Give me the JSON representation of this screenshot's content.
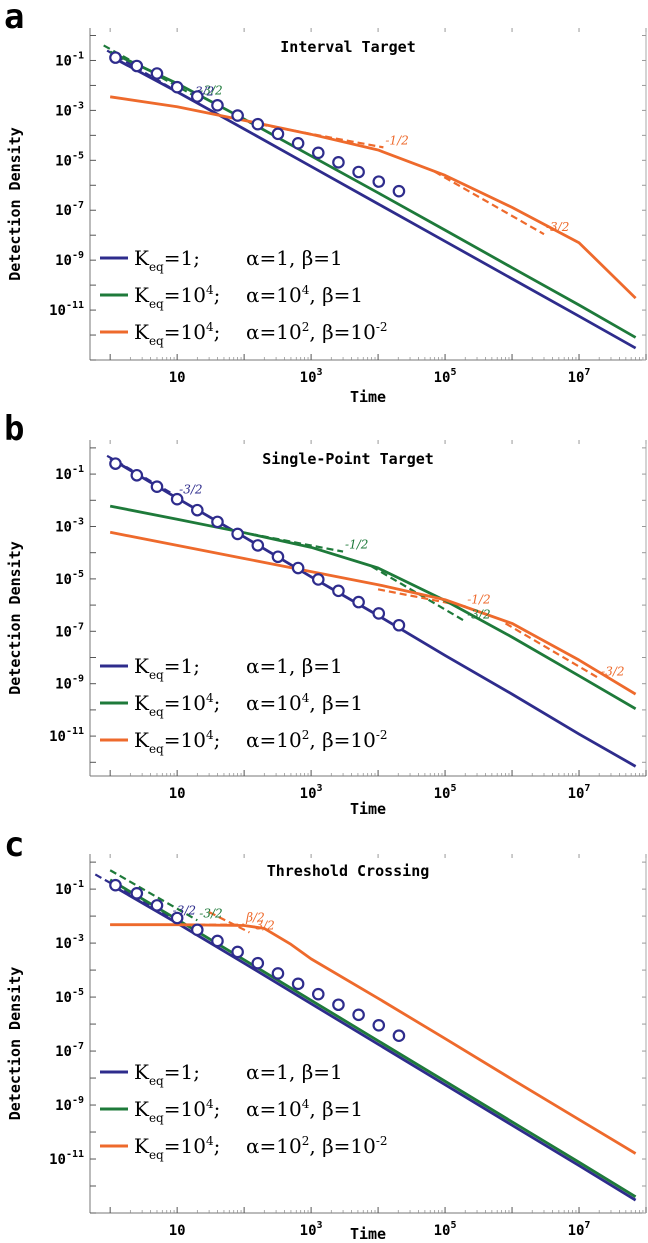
{
  "colors": {
    "blue": "#2e2c8c",
    "green": "#1e7a3a",
    "orange": "#ee6a2c"
  },
  "legend": [
    {
      "name": "K_eq=1; α=1, β=1",
      "k": "1",
      "k_sup": "",
      "alpha": "1",
      "alpha_sup": "",
      "beta": "1",
      "beta_sup": "",
      "color": "blue"
    },
    {
      "name": "K_eq=10^4; α=10^4, β=1",
      "k": "10",
      "k_sup": "4",
      "alpha": "10",
      "alpha_sup": "4",
      "beta": "1",
      "beta_sup": "",
      "color": "green"
    },
    {
      "name": "K_eq=10^4; α=10^2, β=10^-2",
      "k": "10",
      "k_sup": "4",
      "alpha": "10",
      "alpha_sup": "2",
      "beta": "10",
      "beta_sup": "-2",
      "color": "orange"
    }
  ],
  "chart_data": [
    {
      "type": "line",
      "panel": "a",
      "title": "Interval Target",
      "xlabel": "Time",
      "ylabel": "Detection Density",
      "xscale": "log",
      "yscale": "log",
      "xlim": [
        0.5,
        100000000
      ],
      "ylim": [
        1e-13,
        2
      ],
      "xticks": [
        {
          "value": 10,
          "label": "10"
        },
        {
          "value": 1000,
          "label": "10",
          "exp": "3"
        },
        {
          "value": 100000,
          "label": "10",
          "exp": "5"
        },
        {
          "value": 10000000,
          "label": "10",
          "exp": "7"
        }
      ],
      "yticks": [
        {
          "value": 0.1,
          "label": "10",
          "exp": "-1"
        },
        {
          "value": 0.001,
          "label": "10",
          "exp": "-3"
        },
        {
          "value": 1e-05,
          "label": "10",
          "exp": "-5"
        },
        {
          "value": 1e-07,
          "label": "10",
          "exp": "-7"
        },
        {
          "value": 1e-09,
          "label": "10",
          "exp": "-9"
        },
        {
          "value": 1e-11,
          "label": "10",
          "exp": "-11"
        }
      ],
      "legend_position": "bottom-left",
      "series": [
        {
          "color": "blue",
          "x": [
            1,
            10,
            100,
            1000,
            10000,
            100000,
            1000000,
            10000000,
            70000000
          ],
          "y": [
            0.15,
            0.0055,
            0.00018,
            5.7e-06,
            1.8e-07,
            5.7e-09,
            1.8e-10,
            5.7e-12,
            3e-13
          ]
        },
        {
          "color": "green",
          "x": [
            1,
            10,
            100,
            1000,
            10000,
            100000,
            1000000,
            10000000,
            70000000
          ],
          "y": [
            0.22,
            0.012,
            0.00045,
            1.5e-05,
            5e-07,
            1.6e-08,
            5e-10,
            1.6e-11,
            8e-13
          ]
        },
        {
          "color": "orange",
          "x": [
            1,
            10,
            100,
            1000,
            10000,
            100000,
            1000000,
            10000000,
            70000000
          ],
          "y": [
            0.0035,
            0.0014,
            0.0004,
            0.00011,
            2.6e-05,
            2.5e-06,
            1.3e-07,
            5e-09,
            3e-11
          ]
        }
      ],
      "markers": {
        "color": "blue",
        "x": [
          1.2,
          2.5,
          5,
          10,
          20,
          40,
          80,
          160,
          320,
          640,
          1280,
          2560,
          5120,
          10240,
          20480
        ],
        "y": [
          0.13,
          0.06,
          0.03,
          0.0085,
          0.0036,
          0.0016,
          0.00062,
          0.00028,
          0.000115,
          4.8e-05,
          2e-05,
          8.3e-06,
          3.4e-06,
          1.4e-06,
          5.8e-07
        ]
      },
      "guides": [
        {
          "color": "green",
          "x": [
            0.8,
            20
          ],
          "y": [
            0.4,
            0.0033
          ],
          "label": "-3/2"
        },
        {
          "color": "blue",
          "x": [
            0.9,
            15
          ],
          "y": [
            0.25,
            0.003
          ],
          "label": "-3/2"
        },
        {
          "color": "orange",
          "x": [
            120,
            12000
          ],
          "y": [
            0.00033,
            3.3e-05
          ],
          "label": "-1/2"
        },
        {
          "color": "orange",
          "x": [
            70000,
            3000000
          ],
          "y": [
            3.5e-06,
            1.1e-08
          ],
          "label": "-3/2"
        }
      ]
    },
    {
      "type": "line",
      "panel": "b",
      "title": "Single-Point Target",
      "xlabel": "Time",
      "ylabel": "Detection Density",
      "xscale": "log",
      "yscale": "log",
      "xlim": [
        0.5,
        100000000
      ],
      "ylim": [
        3e-13,
        2
      ],
      "xticks": [
        {
          "value": 10,
          "label": "10"
        },
        {
          "value": 1000,
          "label": "10",
          "exp": "3"
        },
        {
          "value": 100000,
          "label": "10",
          "exp": "5"
        },
        {
          "value": 10000000,
          "label": "10",
          "exp": "7"
        }
      ],
      "yticks": [
        {
          "value": 0.1,
          "label": "10",
          "exp": "-1"
        },
        {
          "value": 0.001,
          "label": "10",
          "exp": "-3"
        },
        {
          "value": 1e-05,
          "label": "10",
          "exp": "-5"
        },
        {
          "value": 1e-07,
          "label": "10",
          "exp": "-7"
        },
        {
          "value": 1e-09,
          "label": "10",
          "exp": "-9"
        },
        {
          "value": 1e-11,
          "label": "10",
          "exp": "-11"
        }
      ],
      "legend_position": "bottom-left",
      "series": [
        {
          "color": "blue",
          "x": [
            1,
            10,
            100,
            1000,
            10000,
            100000,
            1000000,
            10000000,
            70000000
          ],
          "y": [
            0.4,
            0.012,
            0.0004,
            1.2e-05,
            4e-07,
            1.2e-08,
            4e-10,
            1.2e-11,
            7e-13
          ]
        },
        {
          "color": "green",
          "x": [
            1,
            10,
            100,
            1000,
            10000,
            100000,
            1000000,
            10000000,
            70000000
          ],
          "y": [
            0.006,
            0.0019,
            0.00058,
            0.00016,
            2.6e-05,
            1.5e-06,
            6e-08,
            2e-09,
            1.1e-10
          ]
        },
        {
          "color": "orange",
          "x": [
            1,
            10,
            100,
            1000,
            10000,
            100000,
            1000000,
            10000000,
            70000000
          ],
          "y": [
            0.0006,
            0.00019,
            6e-05,
            1.9e-05,
            6e-06,
            1.6e-06,
            2e-07,
            8e-09,
            4e-10
          ]
        }
      ],
      "markers": {
        "color": "blue",
        "x": [
          1.2,
          2.5,
          5,
          10,
          20,
          40,
          80,
          160,
          320,
          640,
          1280,
          2560,
          5120,
          10240,
          20480
        ],
        "y": [
          0.25,
          0.09,
          0.033,
          0.011,
          0.0042,
          0.0015,
          0.00052,
          0.00019,
          7e-05,
          2.6e-05,
          9.5e-06,
          3.5e-06,
          1.3e-06,
          4.8e-07,
          1.7e-07
        ]
      },
      "guides": [
        {
          "color": "blue",
          "x": [
            0.9,
            10
          ],
          "y": [
            0.5,
            0.014
          ],
          "label": "-3/2"
        },
        {
          "color": "green",
          "x": [
            60,
            3000
          ],
          "y": [
            0.00075,
            0.00011
          ],
          "label": "-1/2"
        },
        {
          "color": "green",
          "x": [
            8000,
            200000
          ],
          "y": [
            3e-05,
            2.4e-07
          ],
          "label": "-3/2"
        },
        {
          "color": "orange",
          "x": [
            10000,
            200000
          ],
          "y": [
            4e-06,
            9e-07
          ],
          "label": "-1/2"
        },
        {
          "color": "orange",
          "x": [
            800000,
            20000000
          ],
          "y": [
            2e-07,
            1.6e-09
          ],
          "label": "-3/2"
        }
      ]
    },
    {
      "type": "line",
      "panel": "c",
      "title": "Threshold Crossing",
      "xlabel": "Time",
      "ylabel": "Detection Density",
      "xscale": "log",
      "yscale": "log",
      "xlim": [
        0.5,
        100000000
      ],
      "ylim": [
        1e-13,
        2
      ],
      "xticks": [
        {
          "value": 10,
          "label": "10"
        },
        {
          "value": 1000,
          "label": "10",
          "exp": "3"
        },
        {
          "value": 100000,
          "label": "10",
          "exp": "5"
        },
        {
          "value": 10000000,
          "label": "10",
          "exp": "7"
        }
      ],
      "yticks": [
        {
          "value": 0.1,
          "label": "10",
          "exp": "-1"
        },
        {
          "value": 0.001,
          "label": "10",
          "exp": "-3"
        },
        {
          "value": 1e-05,
          "label": "10",
          "exp": "-5"
        },
        {
          "value": 1e-07,
          "label": "10",
          "exp": "-7"
        },
        {
          "value": 1e-09,
          "label": "10",
          "exp": "-9"
        },
        {
          "value": 1e-11,
          "label": "10",
          "exp": "-11"
        }
      ],
      "legend_position": "bottom-left",
      "series": [
        {
          "color": "blue",
          "x": [
            1,
            10,
            100,
            1000,
            10000,
            100000,
            1000000,
            10000000,
            70000000
          ],
          "y": [
            0.15,
            0.0055,
            0.00018,
            5.7e-06,
            1.8e-07,
            5.7e-09,
            1.8e-10,
            5.7e-12,
            3e-13
          ]
        },
        {
          "color": "green",
          "x": [
            1,
            10,
            100,
            1000,
            10000,
            100000,
            1000000,
            10000000,
            70000000
          ],
          "y": [
            0.22,
            0.0075,
            0.00024,
            7.6e-06,
            2.4e-07,
            7.6e-09,
            2.4e-10,
            7.6e-12,
            4e-13
          ]
        },
        {
          "color": "orange",
          "x": [
            1,
            10,
            100,
            200,
            500,
            1000,
            10000,
            100000,
            1000000,
            10000000,
            70000000
          ],
          "y": [
            0.0048,
            0.0048,
            0.0045,
            0.0035,
            0.0009,
            0.00026,
            9e-06,
            2.9e-07,
            9e-09,
            2.9e-10,
            1.6e-11
          ]
        }
      ],
      "markers": {
        "color": "blue",
        "x": [
          1.2,
          2.5,
          5,
          10,
          20,
          40,
          80,
          160,
          320,
          640,
          1280,
          2560,
          5120,
          10240,
          20480
        ],
        "y": [
          0.14,
          0.07,
          0.025,
          0.0085,
          0.0031,
          0.0012,
          0.00047,
          0.00018,
          7.5e-05,
          3.1e-05,
          1.28e-05,
          5.2e-06,
          2.2e-06,
          9e-07,
          3.7e-07
        ]
      },
      "guides": [
        {
          "color": "blue",
          "x": [
            0.6,
            8
          ],
          "y": [
            0.35,
            0.009
          ],
          "label": "-3/2"
        },
        {
          "color": "green",
          "x": [
            1,
            20
          ],
          "y": [
            0.5,
            0.007
          ],
          "label": "-3/2"
        },
        {
          "color": "orange",
          "x": [
            1,
            100
          ],
          "y": [
            0.0048,
            0.0048
          ],
          "label": "β/2"
        },
        {
          "color": "orange",
          "x": [
            30,
            120
          ],
          "y": [
            0.014,
            0.0025
          ],
          "label": "-3/2"
        }
      ]
    }
  ]
}
